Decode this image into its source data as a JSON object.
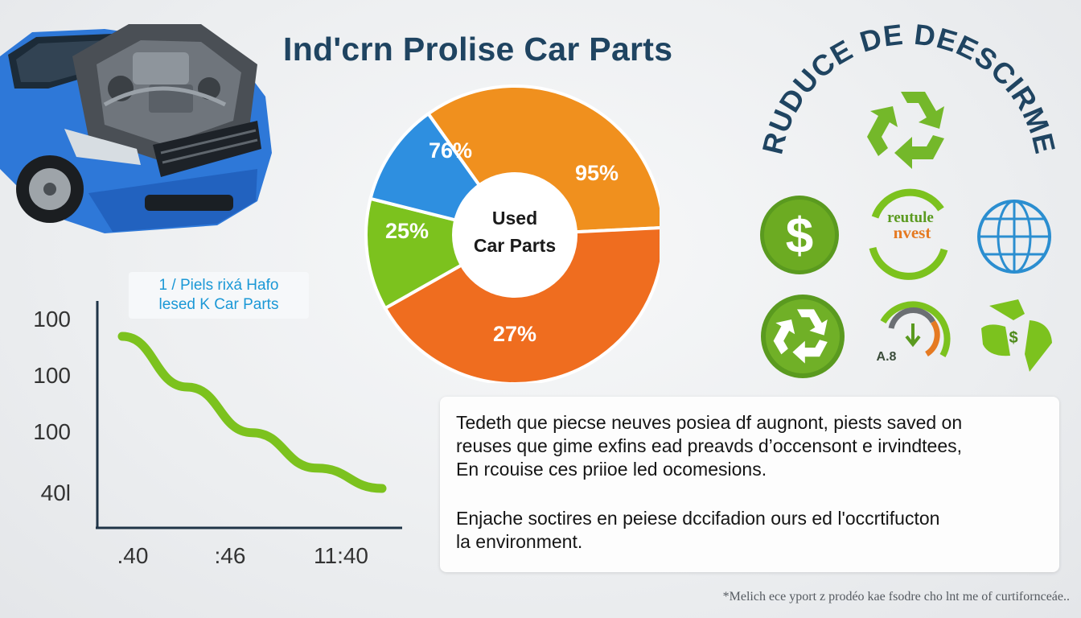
{
  "title": "Ind'crn Prolise Car Parts",
  "chart_data": [
    {
      "type": "pie",
      "title": "",
      "center_label": [
        "Used",
        "Car Parts"
      ],
      "slices": [
        {
          "label": "76%",
          "value": 76,
          "color": "#f0901e"
        },
        {
          "label": "95%",
          "value": 95,
          "color": "#ef6d1f"
        },
        {
          "label": "27%",
          "value": 27,
          "color": "#7cc21e"
        },
        {
          "label": "25%",
          "value": 25,
          "color": "#2e8fe0"
        }
      ]
    },
    {
      "type": "line",
      "title": "",
      "badge": [
        "1 / Piels rixá Hafo",
        "lesed K Car Parts"
      ],
      "y_ticks": [
        "100",
        "100",
        "100",
        "40l"
      ],
      "x_ticks": [
        ".40",
        ":46",
        "11:40"
      ],
      "series": [
        {
          "values": [
            100,
            80,
            62,
            48,
            40
          ],
          "color": "#7cc21e"
        }
      ],
      "ylim": [
        40,
        100
      ],
      "grid": false
    }
  ],
  "arc_title": "RUDUCE DE DEESCIRME",
  "icons": {
    "dollar": "$",
    "invest_line1": "reutule",
    "invest_line2": "nvest",
    "gauge_label": "A.8",
    "leaf_dollar": "$"
  },
  "panel": {
    "para1": [
      "Tedeth que piecse neuves posiea df augnont, piests saved on",
      "reuses que gime exfins ead preavds d’occensont e irvindtees,",
      "En rcouise ces priioe led ocomesions."
    ],
    "para2": [
      "Enjache soctires en peiese dccifadion ours ed l'occrtifucton",
      "la environment."
    ]
  },
  "footnote": "*Melich ece yport z prodéo kae fsodre cho lnt me of curtifornceáe.."
}
